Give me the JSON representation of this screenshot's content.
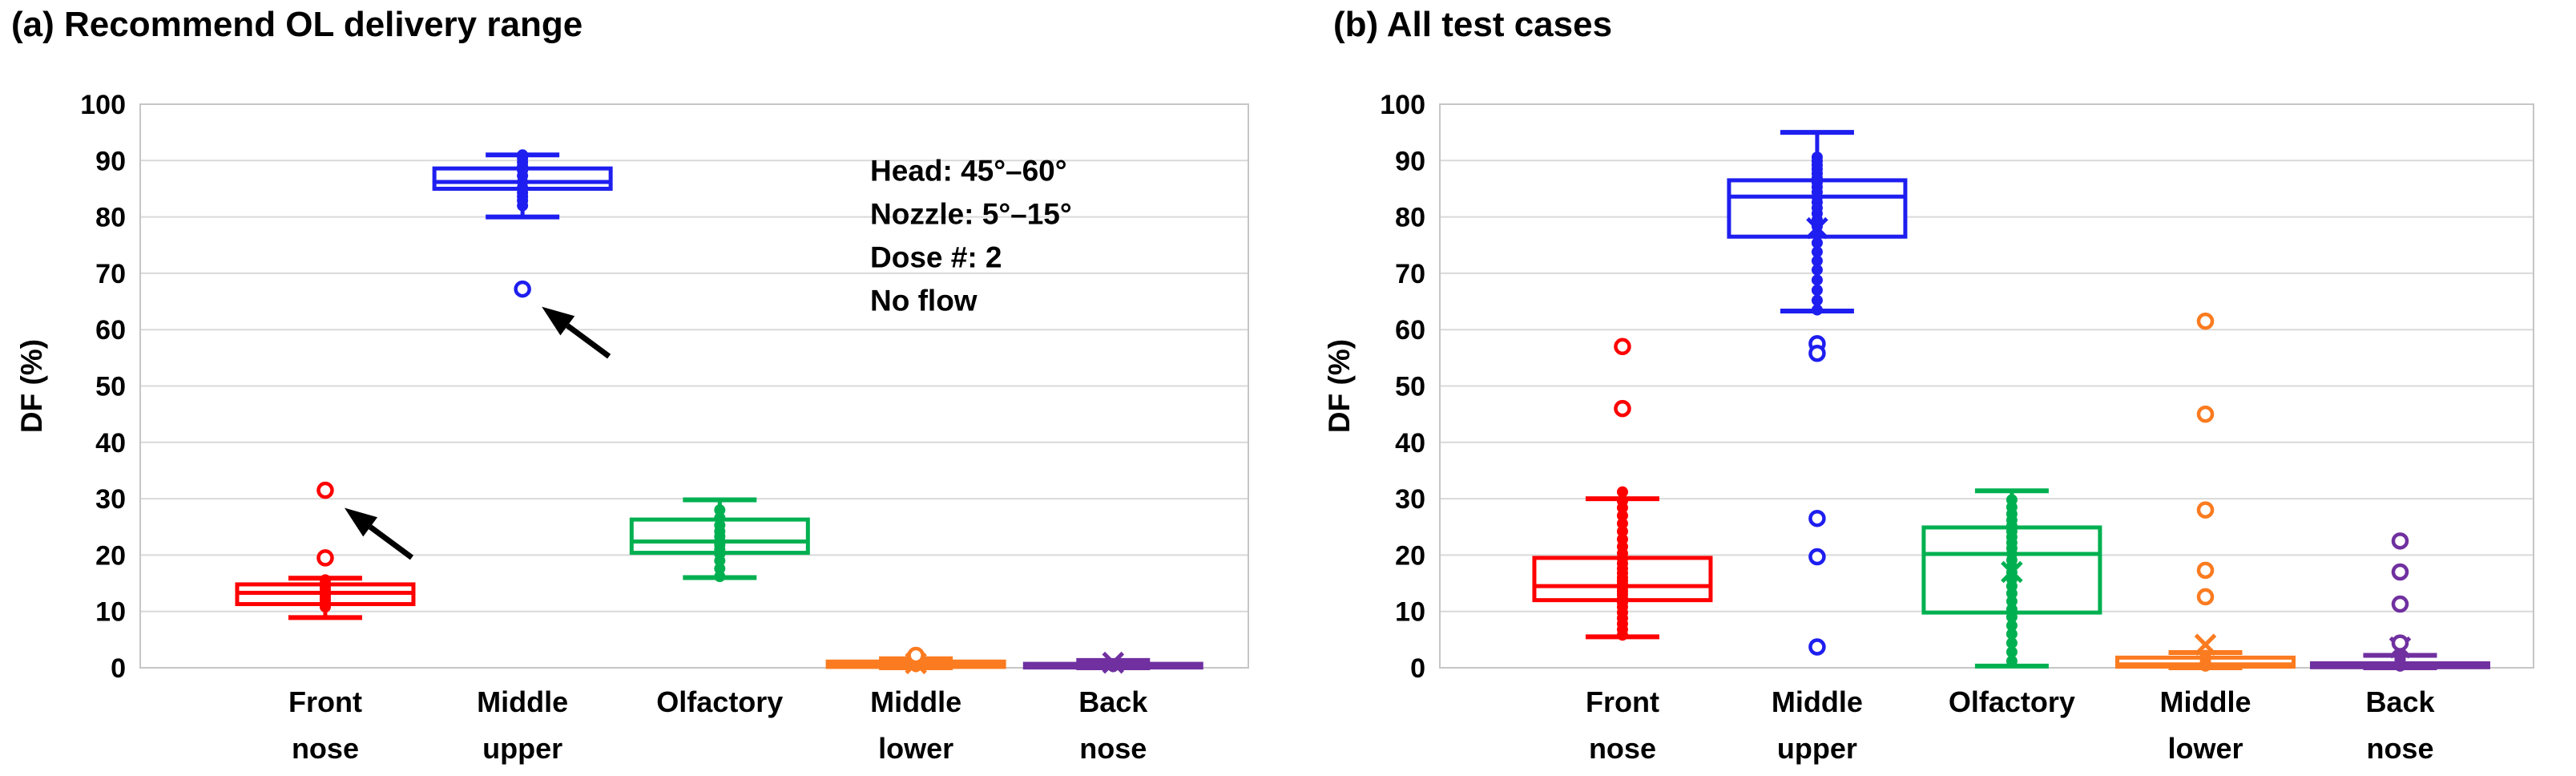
{
  "figure": {
    "panel_a_title": "(a) Recommend OL delivery range",
    "panel_b_title": "(b) All test cases",
    "y_axis_title": "DF (%)",
    "colors": {
      "front_nose": "#FE0000",
      "middle_upper": "#1E1EF0",
      "olfactory": "#00B050",
      "middle_lower": "#FB7B20",
      "back_nose": "#7030A0",
      "gridline": "#D9D9D9",
      "plot_border": "#C6C6C6",
      "text": "#000000",
      "arrow": "#000000"
    }
  },
  "chart_data": [
    {
      "type": "box",
      "panel": "a",
      "title": "(a) Recommend OL delivery range",
      "ylabel": "DF (%)",
      "ylim": [
        0,
        100
      ],
      "ytick_step": 10,
      "yticks": [
        0,
        10,
        20,
        30,
        40,
        50,
        60,
        70,
        80,
        90,
        100
      ],
      "grid": true,
      "legend_position": "none",
      "categories": [
        [
          "Front",
          "nose"
        ],
        [
          "Middle",
          "upper"
        ],
        [
          "Olfactory"
        ],
        [
          "Middle",
          "lower"
        ],
        [
          "Back",
          "nose"
        ]
      ],
      "series": [
        {
          "name": "Front nose",
          "color": "#FE0000",
          "whisker_low": 8.9,
          "q1": 11.3,
          "median": 13.3,
          "q3": 14.8,
          "whisker_high": 15.9,
          "mean": null,
          "outliers": [
            19.5,
            31.5
          ],
          "points": [
            10.8,
            11.4,
            12.0,
            12.5,
            13.0,
            13.4,
            13.9,
            14.4,
            15.0,
            15.6
          ]
        },
        {
          "name": "Middle upper",
          "color": "#1E1EF0",
          "whisker_low": 80.0,
          "q1": 85.0,
          "median": 86.2,
          "q3": 88.6,
          "whisker_high": 91.0,
          "mean": null,
          "outliers": [
            67.2
          ],
          "points": [
            82.0,
            82.9,
            83.6,
            84.3,
            85.2,
            86.2,
            87.3,
            88.3,
            89.0,
            89.7,
            90.4,
            91.0
          ]
        },
        {
          "name": "Olfactory",
          "color": "#00B050",
          "whisker_low": 16.0,
          "q1": 20.4,
          "median": 22.4,
          "q3": 26.3,
          "whisker_high": 29.8,
          "mean": null,
          "outliers": [],
          "points": [
            16.2,
            17.6,
            19.0,
            20.2,
            21.0,
            21.8,
            22.5,
            23.3,
            24.2,
            25.3,
            26.6,
            28.0
          ]
        },
        {
          "name": "Middle lower",
          "color": "#FB7B20",
          "whisker_low": 0.0,
          "q1": 0.15,
          "median": 0.5,
          "q3": 1.1,
          "whisker_high": 1.6,
          "mean": 0.8,
          "outliers": [
            2.2
          ],
          "points": [
            0.2,
            0.5,
            0.8,
            1.2
          ]
        },
        {
          "name": "Back nose",
          "color": "#7030A0",
          "whisker_low": 0.0,
          "q1": 0.05,
          "median": 0.3,
          "q3": 0.7,
          "whisker_high": 1.3,
          "mean": 0.9,
          "outliers": [],
          "points": [
            0.2,
            0.4,
            0.7
          ]
        }
      ],
      "text_annotations": [
        "Head: 45°–60°",
        "Nozzle: 5°–15°",
        "Dose #: 2",
        "No flow"
      ],
      "arrows": [
        {
          "category_index": 0,
          "points_at_value": 31.5
        },
        {
          "category_index": 1,
          "points_at_value": 67.2
        }
      ]
    },
    {
      "type": "box",
      "panel": "b",
      "title": "(b) All test cases",
      "ylabel": "DF (%)",
      "ylim": [
        0,
        100
      ],
      "ytick_step": 10,
      "yticks": [
        0,
        10,
        20,
        30,
        40,
        50,
        60,
        70,
        80,
        90,
        100
      ],
      "grid": true,
      "legend_position": "none",
      "categories": [
        [
          "Front",
          "nose"
        ],
        [
          "Middle",
          "upper"
        ],
        [
          "Olfactory"
        ],
        [
          "Middle",
          "lower"
        ],
        [
          "Back",
          "nose"
        ]
      ],
      "series": [
        {
          "name": "Front nose",
          "color": "#FE0000",
          "whisker_low": 5.5,
          "q1": 12.0,
          "median": 14.5,
          "q3": 19.5,
          "whisker_high": 30.0,
          "mean": null,
          "outliers": [
            57.0,
            46.0
          ],
          "points": [
            5.8,
            6.8,
            7.8,
            8.8,
            9.8,
            10.8,
            11.6,
            12.3,
            13.0,
            13.6,
            14.2,
            14.8,
            15.4,
            16.0,
            16.8,
            17.6,
            18.5,
            19.4,
            20.3,
            21.5,
            22.8,
            24.2,
            25.6,
            27.0,
            28.4,
            29.6,
            31.2
          ]
        },
        {
          "name": "Middle upper",
          "color": "#1E1EF0",
          "whisker_low": 63.3,
          "q1": 76.5,
          "median": 83.6,
          "q3": 86.5,
          "whisker_high": 95.0,
          "mean": 78.0,
          "outliers": [
            57.5,
            55.8,
            26.5,
            19.7,
            3.7
          ],
          "points": [
            63.5,
            65.2,
            67.0,
            68.8,
            70.6,
            72.2,
            73.8,
            75.4,
            77.0,
            78.3,
            79.5,
            80.6,
            81.6,
            82.6,
            83.5,
            84.4,
            85.3,
            86.1,
            86.9,
            87.7,
            88.5,
            89.2,
            89.9,
            90.6
          ]
        },
        {
          "name": "Olfactory",
          "color": "#00B050",
          "whisker_low": 0.3,
          "q1": 9.8,
          "median": 20.2,
          "q3": 24.9,
          "whisker_high": 31.4,
          "mean": 17.0,
          "outliers": [],
          "points": [
            1.2,
            2.8,
            4.4,
            6.0,
            7.5,
            9.0,
            10.4,
            11.8,
            13.2,
            14.5,
            15.7,
            16.9,
            18.0,
            19.1,
            20.2,
            21.2,
            22.2,
            23.2,
            24.2,
            25.2,
            26.2,
            27.3,
            28.5,
            29.8
          ]
        },
        {
          "name": "Middle lower",
          "color": "#FB7B20",
          "whisker_low": 0.0,
          "q1": 0.2,
          "median": 0.6,
          "q3": 1.8,
          "whisker_high": 2.7,
          "mean": 4.1,
          "outliers": [
            61.5,
            45.0,
            28.0,
            17.3,
            12.6
          ],
          "points": [
            0.3,
            0.7,
            1.1,
            1.6,
            2.2
          ]
        },
        {
          "name": "Back nose",
          "color": "#7030A0",
          "whisker_low": 0.0,
          "q1": 0.1,
          "median": 0.4,
          "q3": 0.8,
          "whisker_high": 2.2,
          "mean": 3.6,
          "outliers": [
            22.5,
            17.0,
            11.3,
            4.4
          ],
          "points": [
            0.3,
            0.6,
            1.0,
            1.5,
            2.0
          ]
        }
      ],
      "text_annotations": [],
      "arrows": []
    }
  ]
}
